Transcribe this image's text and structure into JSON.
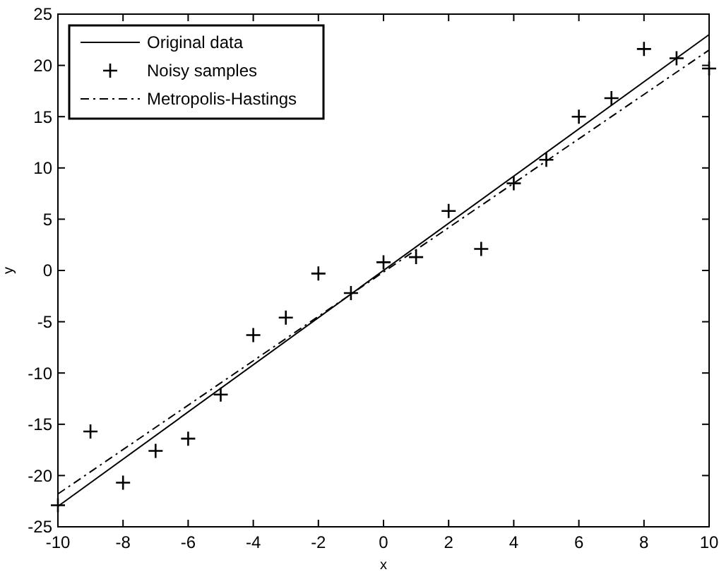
{
  "chart_data": {
    "type": "line",
    "xlabel": "x",
    "ylabel": "y",
    "xlim": [
      -10,
      10
    ],
    "ylim": [
      -25,
      25
    ],
    "xticks": [
      -10,
      -8,
      -6,
      -4,
      -2,
      0,
      2,
      4,
      6,
      8,
      10
    ],
    "yticks": [
      -25,
      -20,
      -15,
      -10,
      -5,
      0,
      5,
      10,
      15,
      20,
      25
    ],
    "grid": false,
    "legend": "top left",
    "series": [
      {
        "name": "Original data",
        "color": "#000000",
        "line_style": "solid",
        "marker": "none",
        "x": [
          -10,
          10
        ],
        "values": [
          -23,
          23
        ]
      },
      {
        "name": "Noisy samples",
        "type": "scatter",
        "color": "#000000",
        "marker": "cross",
        "x": [
          -10,
          -9,
          -8,
          -7,
          -6,
          -5,
          -4,
          -3,
          -2,
          -1,
          0,
          1,
          2,
          3,
          4,
          5,
          6,
          7,
          8,
          9,
          10
        ],
        "values": [
          -22.9,
          -15.7,
          -20.7,
          -17.6,
          -16.4,
          -12.1,
          -6.3,
          -4.6,
          -0.3,
          -2.2,
          0.8,
          1.3,
          5.8,
          2.1,
          8.5,
          10.8,
          15,
          16.8,
          21.6,
          20.7,
          19.7
        ]
      },
      {
        "name": "Metropolis-Hastings",
        "color": "#000000",
        "line_style": "dashdot",
        "marker": "none",
        "x": [
          -10,
          10
        ],
        "values": [
          -21.8,
          21.5
        ]
      }
    ]
  }
}
